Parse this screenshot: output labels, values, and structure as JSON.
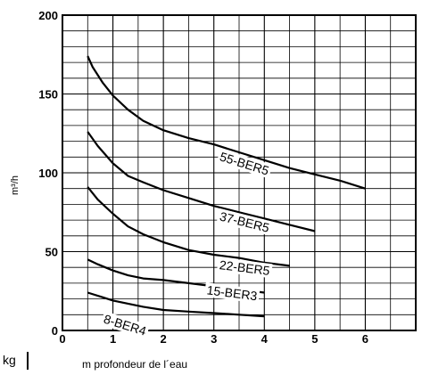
{
  "chart_data": {
    "type": "line",
    "title": "",
    "xlabel": "m profondeur de l´eau",
    "ylabel": "m³/h",
    "unit_box": "kg",
    "xlim": [
      0,
      7
    ],
    "ylim": [
      0,
      200
    ],
    "x_ticks": [
      0,
      1,
      2,
      3,
      4,
      5,
      6
    ],
    "y_ticks": [
      0,
      50,
      100,
      150,
      200
    ],
    "grid": true,
    "series": [
      {
        "name": "55-BER5",
        "label_at": [
          3.1,
          108
        ],
        "x": [
          0.5,
          0.6,
          0.8,
          1.0,
          1.3,
          1.6,
          2.0,
          2.5,
          3.0,
          3.5,
          4.0,
          4.5,
          5.0,
          5.5,
          6.0
        ],
        "y": [
          174,
          167,
          157,
          149,
          140,
          133,
          127,
          122,
          118,
          113,
          108,
          103,
          99,
          95,
          90
        ]
      },
      {
        "name": "37-BER5",
        "label_at": [
          3.1,
          70
        ],
        "x": [
          0.5,
          0.7,
          1.0,
          1.3,
          1.6,
          2.0,
          2.5,
          3.0,
          3.5,
          4.0,
          4.5,
          5.0
        ],
        "y": [
          126,
          117,
          106,
          98,
          94,
          89,
          84,
          79,
          75,
          71,
          67,
          63
        ]
      },
      {
        "name": "22-BER5",
        "label_at": [
          3.1,
          39
        ],
        "x": [
          0.5,
          0.7,
          1.0,
          1.3,
          1.6,
          2.0,
          2.5,
          3.0,
          3.5,
          4.0,
          4.5
        ],
        "y": [
          91,
          83,
          74,
          66,
          61,
          56,
          51,
          48,
          46,
          43,
          41
        ]
      },
      {
        "name": "15-BER3",
        "label_at": [
          2.85,
          23
        ],
        "x": [
          0.5,
          0.7,
          1.0,
          1.3,
          1.6,
          2.0,
          2.5,
          3.0,
          3.5,
          4.0
        ],
        "y": [
          45,
          42,
          38,
          35,
          33,
          32,
          30,
          28,
          26,
          24
        ]
      },
      {
        "name": "8-BER4",
        "label_at": [
          0.8,
          5
        ],
        "x": [
          0.5,
          0.8,
          1.0,
          1.3,
          1.6,
          2.0,
          2.5,
          3.0,
          3.5,
          4.0
        ],
        "y": [
          24,
          21,
          19,
          17,
          15,
          13,
          12,
          11,
          10,
          9
        ]
      }
    ]
  }
}
